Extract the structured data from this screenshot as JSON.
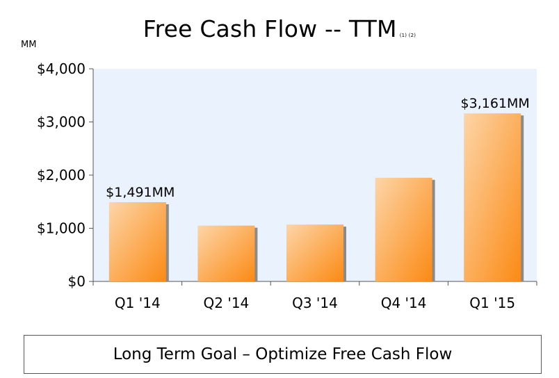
{
  "title": "Free Cash Flow -- TTM",
  "title_footnote": "(1) (2)",
  "unit_label": "MM",
  "goal_text": "Long Term Goal – Optimize Free Cash Flow",
  "colors": {
    "plot_bg": "#eaf2fd",
    "bar_light": "#fdd5a8",
    "bar_dark": "#fb8a14",
    "bar_shadow": "#8a8a8a",
    "axis": "#555555"
  },
  "chart_data": {
    "type": "bar",
    "title": "Free Cash Flow -- TTM",
    "ylabel": "MM",
    "xlabel": "",
    "ylim": [
      0,
      4000
    ],
    "yticks": [
      0,
      1000,
      2000,
      3000,
      4000
    ],
    "ytick_labels": [
      "$0",
      "$1,000",
      "$2,000",
      "$3,000",
      "$4,000"
    ],
    "categories": [
      "Q1 '14",
      "Q2 '14",
      "Q3 '14",
      "Q4 '14",
      "Q1 '15"
    ],
    "values": [
      1491,
      1050,
      1070,
      1950,
      3161
    ],
    "data_labels": [
      "$1,491MM",
      "",
      "",
      "",
      "$3,161MM"
    ],
    "grid": false,
    "legend": "none"
  }
}
